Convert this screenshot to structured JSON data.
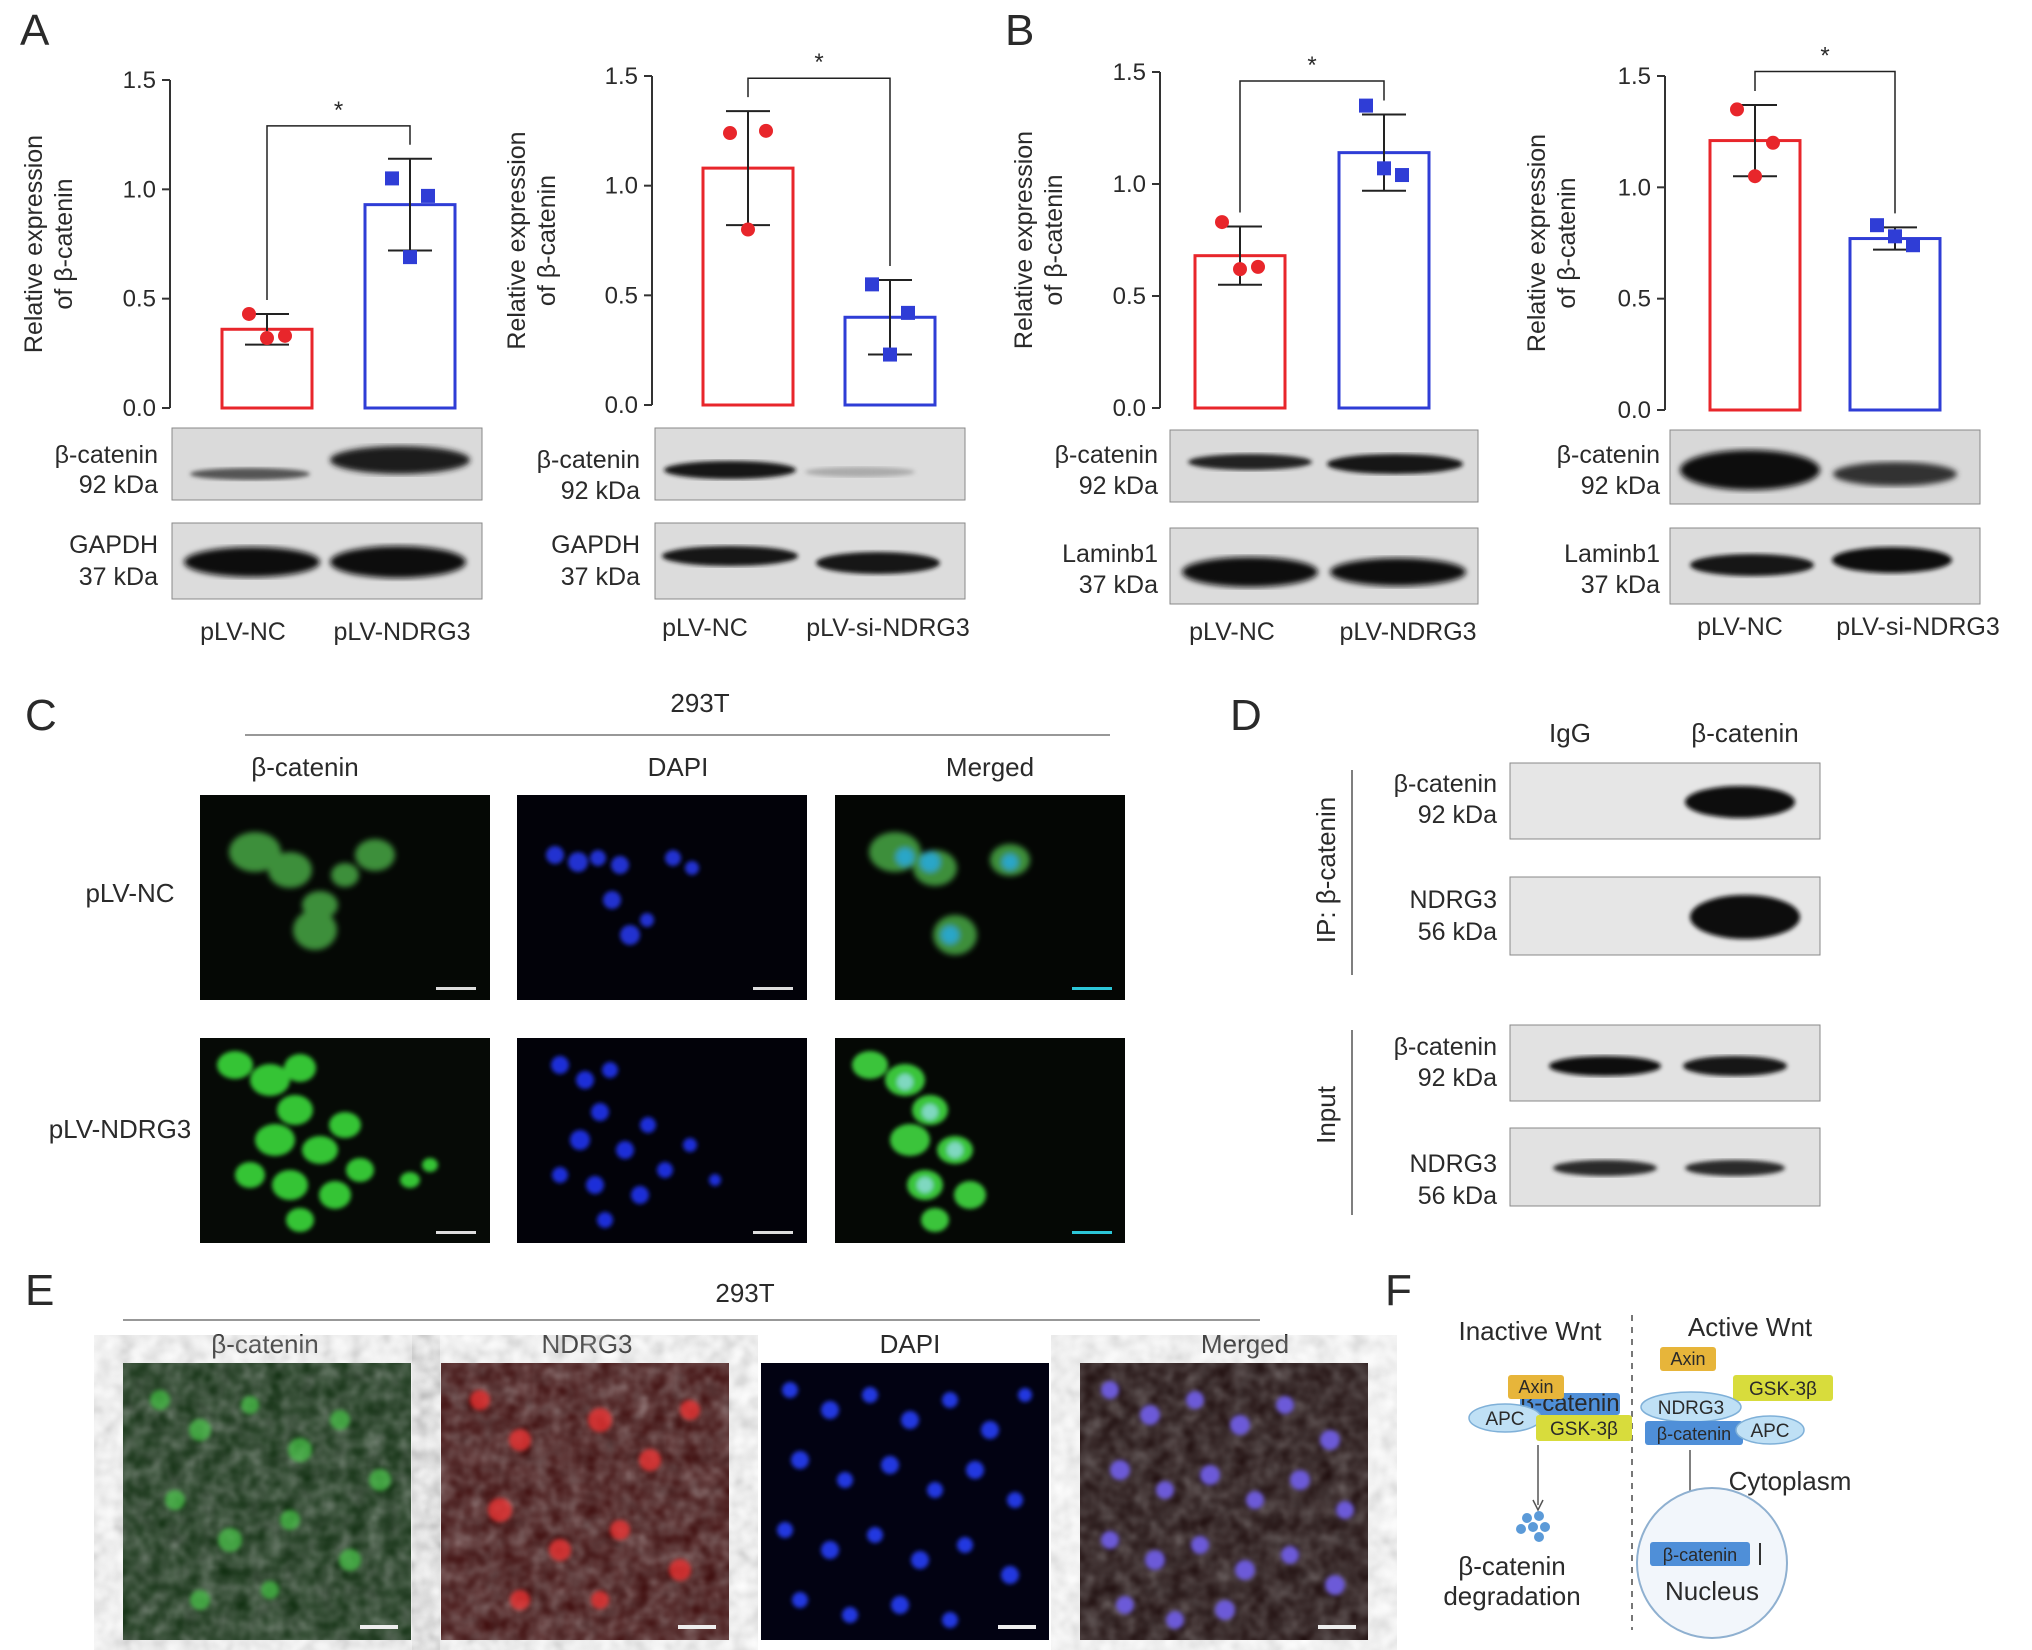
{
  "panel_letters": {
    "a": "A",
    "b": "B",
    "c": "C",
    "d": "D",
    "e": "E",
    "f": "F"
  },
  "chart_data": [
    {
      "id": "A1",
      "type": "bar",
      "ylabel_line1": "Relative expression",
      "ylabel_line2": "of β-catenin",
      "ylim": [
        0,
        1.5
      ],
      "yticks": [
        "0.0",
        "0.5",
        "1.0",
        "1.5"
      ],
      "categories": [
        "pLV-NC",
        "pLV-NDRG3"
      ],
      "values": [
        0.36,
        0.93
      ],
      "errors": [
        0.07,
        0.21
      ],
      "points": [
        [
          0.43,
          0.33,
          0.32
        ],
        [
          1.05,
          0.97,
          0.69
        ]
      ],
      "colors": [
        "#e8262b",
        "#2f3dd6"
      ],
      "significance": "*"
    },
    {
      "id": "A2",
      "type": "bar",
      "ylabel_line1": "Relative expression",
      "ylabel_line2": "of β-catenin",
      "ylim": [
        0,
        1.5
      ],
      "yticks": [
        "0.0",
        "0.5",
        "1.0",
        "1.5"
      ],
      "categories": [
        "pLV-NC",
        "pLV-si-NDRG3"
      ],
      "values": [
        1.08,
        0.4
      ],
      "errors": [
        0.26,
        0.17
      ],
      "points": [
        [
          1.24,
          1.25,
          0.8
        ],
        [
          0.55,
          0.42,
          0.23
        ]
      ],
      "colors": [
        "#e8262b",
        "#2f3dd6"
      ],
      "significance": "*"
    },
    {
      "id": "B1",
      "type": "bar",
      "ylabel_line1": "Relative expression",
      "ylabel_line2": "of β-catenin",
      "ylim": [
        0,
        1.5
      ],
      "yticks": [
        "0.0",
        "0.5",
        "1.0",
        "1.5"
      ],
      "categories": [
        "pLV-NC",
        "pLV-NDRG3"
      ],
      "values": [
        0.68,
        1.14
      ],
      "errors": [
        0.13,
        0.17
      ],
      "points": [
        [
          0.83,
          0.63,
          0.62
        ],
        [
          1.35,
          1.04,
          1.07
        ]
      ],
      "colors": [
        "#e8262b",
        "#2f3dd6"
      ],
      "significance": "*"
    },
    {
      "id": "B2",
      "type": "bar",
      "ylabel_line1": "Relative expression",
      "ylabel_line2": "of β-catenin",
      "ylim": [
        0,
        1.5
      ],
      "yticks": [
        "0.0",
        "0.5",
        "1.0",
        "1.5"
      ],
      "categories": [
        "pLV-NC",
        "pLV-si-NDRG3"
      ],
      "values": [
        1.21,
        0.77
      ],
      "errors": [
        0.16,
        0.05
      ],
      "points": [
        [
          1.35,
          1.2,
          1.05
        ],
        [
          0.83,
          0.74,
          0.78
        ]
      ],
      "colors": [
        "#e8262b",
        "#2f3dd6"
      ],
      "significance": "*"
    }
  ],
  "blots": {
    "a1": {
      "row1_name": "β-catenin",
      "row1_kda": "92 kDa",
      "row2_name": "GAPDH",
      "row2_kda": "37 kDa",
      "lane1": "pLV-NC",
      "lane2": "pLV-NDRG3"
    },
    "a2": {
      "row1_name": "β-catenin",
      "row1_kda": "92 kDa",
      "row2_name": "GAPDH",
      "row2_kda": "37 kDa",
      "lane1": "pLV-NC",
      "lane2": "pLV-si-NDRG3"
    },
    "b1": {
      "row1_name": "β-catenin",
      "row1_kda": "92 kDa",
      "row2_name": "Laminb1",
      "row2_kda": "37 kDa",
      "lane1": "pLV-NC",
      "lane2": "pLV-NDRG3"
    },
    "b2": {
      "row1_name": "β-catenin",
      "row1_kda": "92 kDa",
      "row2_name": "Laminb1",
      "row2_kda": "37 kDa",
      "lane1": "pLV-NC",
      "lane2": "pLV-si-NDRG3"
    }
  },
  "panel_c": {
    "cell_line": "293T",
    "columns": [
      "β-catenin",
      "DAPI",
      "Merged"
    ],
    "rows": [
      "pLV-NC",
      "pLV-NDRG3"
    ]
  },
  "panel_d": {
    "col1": "IgG",
    "col2": "β-catenin",
    "ip_label": "IP: β-catenin",
    "input_label": "Input",
    "ip_row1_name": "β-catenin",
    "ip_row1_kda": "92 kDa",
    "ip_row2_name": "NDRG3",
    "ip_row2_kda": "56 kDa",
    "in_row1_name": "β-catenin",
    "in_row1_kda": "92 kDa",
    "in_row2_name": "NDRG3",
    "in_row2_kda": "56 kDa"
  },
  "panel_e": {
    "cell_line": "293T",
    "columns": [
      "β-catenin",
      "NDRG3",
      "DAPI",
      "Merged"
    ]
  },
  "panel_f": {
    "inactive_title": "Inactive Wnt",
    "active_title": "Active Wnt",
    "axin": "Axin",
    "bcat": "β-catenin",
    "apc": "APC",
    "gsk": "GSK-3β",
    "ndrg3": "NDRG3",
    "cytoplasm": "Cytoplasm",
    "nucleus": "Nucleus",
    "degradation_line1": "β-catenin",
    "degradation_line2": "degradation",
    "colors": {
      "axin": "#e7b53a",
      "bcat": "#4f8fd8",
      "apc": "#bfe0f5",
      "gsk": "#d8dc3c",
      "ndrg3": "#bfe0f5"
    }
  }
}
